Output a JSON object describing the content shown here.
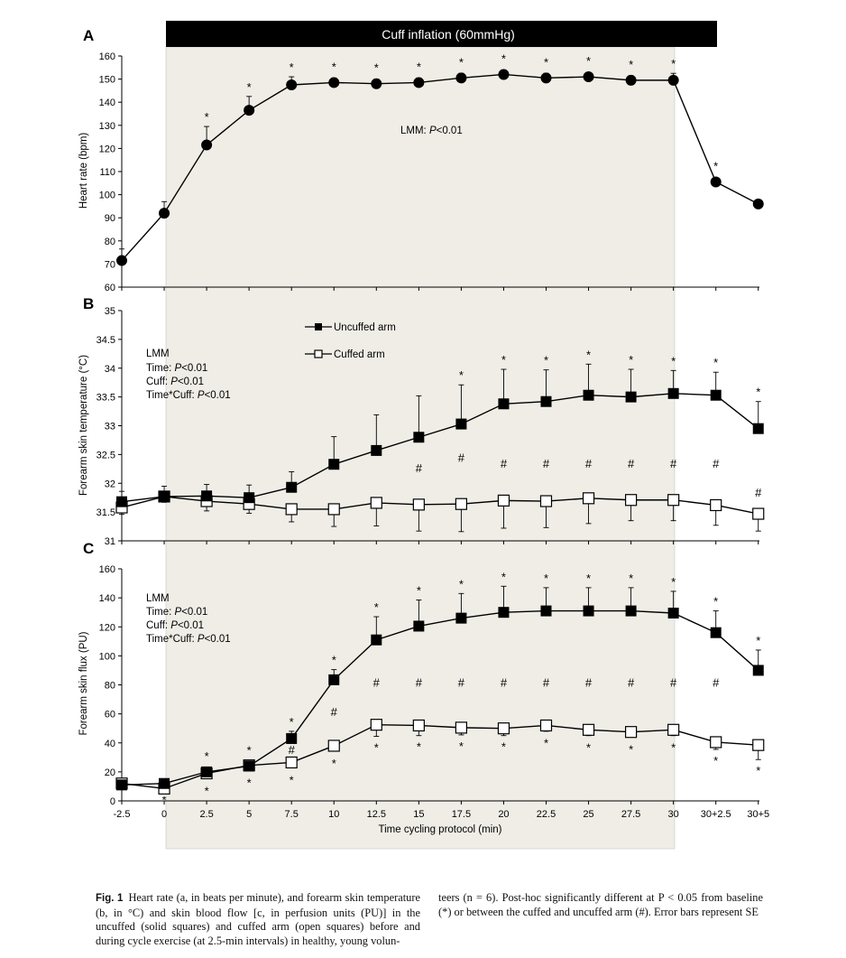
{
  "colors": {
    "shade": "#efede6",
    "banner": "#000000",
    "line": "#000000",
    "open_fill": "#ffffff"
  },
  "x_axis": {
    "label": "Time cycling protocol (min)",
    "ticks": [
      "-2.5",
      "0",
      "2.5",
      "5",
      "7.5",
      "10",
      "12.5",
      "15",
      "17.5",
      "20",
      "22.5",
      "25",
      "27.5",
      "30",
      "30+2.5",
      "30+5"
    ]
  },
  "cuff_banner": "Cuff inflation (60mmHg)",
  "legend": {
    "uncuffed": "Uncuffed arm",
    "cuffed": "Cuffed arm"
  },
  "panels": {
    "a": {
      "letter": "A",
      "stat": [
        "LMM: ",
        "P",
        "<0.01"
      ]
    },
    "b": {
      "letter": "B",
      "stat": [
        "LMM",
        "Time: ",
        "P",
        "<0.01",
        "Cuff: ",
        "P",
        "<0.01",
        "Time*Cuff: ",
        "P",
        "<0.01"
      ]
    },
    "c": {
      "letter": "C",
      "stat": [
        "LMM",
        "Time: ",
        "P",
        "<0.01",
        "Cuff: ",
        "P",
        "<0.01",
        "Time*Cuff: ",
        "P",
        "<0.01"
      ]
    }
  },
  "marks": {
    "star": "*",
    "hash": "#"
  },
  "chart_data": [
    {
      "type": "line",
      "panel": "A",
      "ylabel": "Heart rate (bpm)",
      "ylim": [
        60,
        160
      ],
      "yticks": [
        60,
        70,
        80,
        90,
        100,
        110,
        120,
        130,
        140,
        150,
        160
      ],
      "categories": [
        "-2.5",
        "0",
        "2.5",
        "5",
        "7.5",
        "10",
        "12.5",
        "15",
        "17.5",
        "20",
        "22.5",
        "25",
        "27.5",
        "30",
        "30+2.5",
        "30+5"
      ],
      "series": [
        {
          "marker": "filled-circle",
          "values": [
            71.5,
            92,
            121.5,
            136.5,
            147.5,
            148.5,
            148,
            148.5,
            150.5,
            152,
            150.5,
            151,
            149.5,
            149.5,
            105.5,
            96
          ],
          "error": [
            5,
            5,
            8,
            6,
            3.5,
            2,
            2,
            2,
            2,
            2,
            2,
            1.5,
            2,
            3,
            1.5,
            1.5
          ],
          "star": [
            false,
            false,
            true,
            true,
            true,
            true,
            true,
            true,
            true,
            true,
            true,
            true,
            true,
            true,
            true,
            false
          ]
        }
      ]
    },
    {
      "type": "line",
      "panel": "B",
      "ylabel": "Forearm skin temperature (°C)",
      "ylim": [
        31,
        35
      ],
      "yticks": [
        31,
        31.5,
        32,
        32.5,
        33,
        33.5,
        34,
        34.5,
        35
      ],
      "categories": [
        "-2.5",
        "0",
        "2.5",
        "5",
        "7.5",
        "10",
        "12.5",
        "15",
        "17.5",
        "20",
        "22.5",
        "25",
        "27.5",
        "30",
        "30+2.5",
        "30+5"
      ],
      "series": [
        {
          "name": "Uncuffed arm",
          "marker": "filled-square",
          "values": [
            31.68,
            31.77,
            31.78,
            31.75,
            31.93,
            32.33,
            32.57,
            32.8,
            33.03,
            33.38,
            33.42,
            33.53,
            33.5,
            33.56,
            33.53,
            32.95
          ],
          "error": [
            0.18,
            0.18,
            0.2,
            0.22,
            0.27,
            0.48,
            0.62,
            0.72,
            0.68,
            0.6,
            0.55,
            0.54,
            0.48,
            0.4,
            0.4,
            0.47
          ],
          "star": [
            false,
            false,
            false,
            false,
            false,
            false,
            false,
            false,
            true,
            true,
            true,
            true,
            true,
            true,
            true,
            true
          ],
          "hash": [
            false,
            false,
            false,
            false,
            false,
            false,
            false,
            true,
            true,
            true,
            true,
            true,
            true,
            true,
            true,
            true
          ]
        },
        {
          "name": "Cuffed arm",
          "marker": "open-square",
          "values": [
            31.58,
            31.77,
            31.69,
            31.64,
            31.55,
            31.55,
            31.66,
            31.63,
            31.64,
            31.7,
            31.69,
            31.74,
            31.71,
            31.71,
            31.62,
            31.47
          ],
          "error": [
            0.12,
            0.1,
            0.17,
            0.16,
            0.22,
            0.3,
            0.4,
            0.46,
            0.48,
            0.48,
            0.46,
            0.44,
            0.36,
            0.36,
            0.35,
            0.3
          ],
          "error_dir": "down"
        }
      ]
    },
    {
      "type": "line",
      "panel": "C",
      "ylabel": "Forearm skin flux (PU)",
      "ylim": [
        0,
        160
      ],
      "yticks": [
        0,
        20,
        40,
        60,
        80,
        100,
        120,
        140,
        160
      ],
      "categories": [
        "-2.5",
        "0",
        "2.5",
        "5",
        "7.5",
        "10",
        "12.5",
        "15",
        "17.5",
        "20",
        "22.5",
        "25",
        "27.5",
        "30",
        "30+2.5",
        "30+5"
      ],
      "series": [
        {
          "name": "Uncuffed arm",
          "marker": "filled-square",
          "values": [
            11,
            12,
            20,
            24,
            43,
            83.5,
            111,
            120.5,
            126,
            130,
            131,
            131,
            131,
            129.5,
            116,
            90
          ],
          "error": [
            0,
            0,
            0,
            0,
            5,
            7,
            16,
            18,
            17,
            18,
            16,
            16,
            16,
            15,
            15,
            14
          ],
          "star": [
            false,
            false,
            true,
            true,
            true,
            true,
            true,
            true,
            true,
            true,
            true,
            true,
            true,
            true,
            true,
            true
          ],
          "hash": [
            false,
            false,
            false,
            false,
            true,
            true,
            true,
            true,
            true,
            true,
            true,
            true,
            true,
            true,
            true,
            false
          ]
        },
        {
          "name": "Cuffed arm",
          "marker": "open-square",
          "values": [
            12,
            8.5,
            19,
            24.5,
            26.5,
            38,
            52.5,
            52,
            50.5,
            50,
            52,
            49,
            47.5,
            49,
            40.5,
            38.5
          ],
          "error": [
            0,
            0,
            2,
            2,
            2,
            3,
            8,
            7,
            5,
            5,
            4,
            4,
            3,
            4,
            5,
            10
          ],
          "error_dir": "down",
          "star": [
            false,
            true,
            true,
            true,
            true,
            true,
            true,
            true,
            true,
            true,
            true,
            true,
            true,
            true,
            true,
            true
          ]
        }
      ]
    }
  ],
  "caption": {
    "label": "Fig. 1",
    "left_text": "Heart rate (a, in beats per minute), and forearm skin temperature (b, in °C) and skin blood flow [c, in perfusion units (PU)] in the uncuffed (solid squares) and cuffed arm (open squares) before and during cycle exercise (at 2.5-min intervals) in healthy, young volun-",
    "right_text": "teers (n = 6). Post-hoc significantly different at P < 0.05 from baseline (*) or between the cuffed and uncuffed arm (#). Error bars represent SE"
  }
}
